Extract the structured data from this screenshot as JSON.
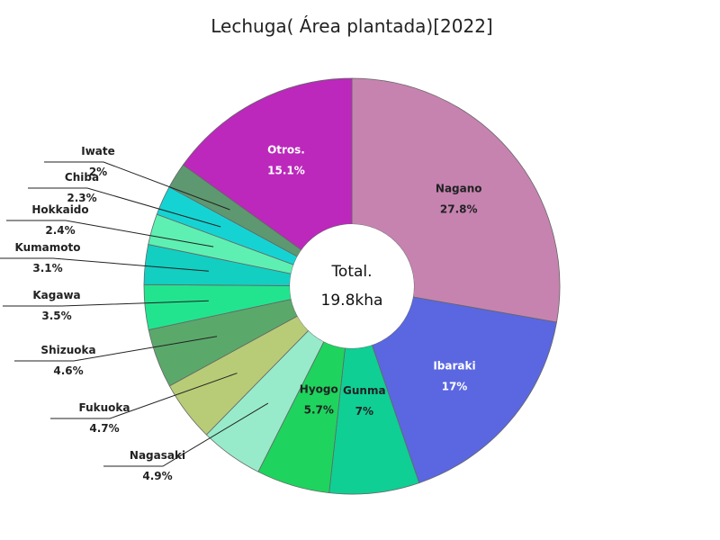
{
  "chart_data": {
    "type": "pie",
    "title": "Lechuga( Área plantada)[2022]",
    "center_label": "Total.",
    "center_value": "19.8kha",
    "slices": [
      {
        "name": "Nagano",
        "value": 27.8,
        "label": "27.8%",
        "color": "#c683b0"
      },
      {
        "name": "Ibaraki",
        "value": 17.0,
        "label": "17%",
        "color": "#5a67e0"
      },
      {
        "name": "Gunma",
        "value": 7.0,
        "label": "7%",
        "color": "#0fcf95"
      },
      {
        "name": "Hyogo",
        "value": 5.7,
        "label": "5.7%",
        "color": "#1ed45e"
      },
      {
        "name": "Nagasaki",
        "value": 4.9,
        "label": "4.9%",
        "color": "#97ebcb"
      },
      {
        "name": "Fukuoka",
        "value": 4.7,
        "label": "4.7%",
        "color": "#b8cc77"
      },
      {
        "name": "Shizuoka",
        "value": 4.6,
        "label": "4.6%",
        "color": "#5ba86b"
      },
      {
        "name": "Kagawa",
        "value": 3.5,
        "label": "3.5%",
        "color": "#22e48f"
      },
      {
        "name": "Kumamoto",
        "value": 3.1,
        "label": "3.1%",
        "color": "#12cfc2"
      },
      {
        "name": "Hokkaido",
        "value": 2.4,
        "label": "2.4%",
        "color": "#5ef0b2"
      },
      {
        "name": "Chiba",
        "value": 2.3,
        "label": "2.3%",
        "color": "#16d3d3"
      },
      {
        "name": "Iwate",
        "value": 2.0,
        "label": "2%",
        "color": "#5e9870"
      },
      {
        "name": "Otros.",
        "value": 15.1,
        "label": "15.1%",
        "color": "#bb28bb"
      }
    ]
  }
}
